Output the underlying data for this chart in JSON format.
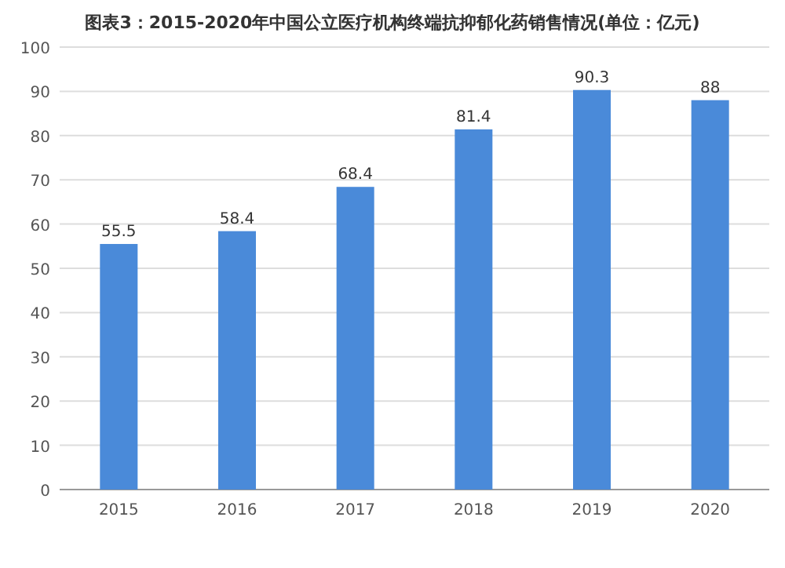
{
  "chart_data": {
    "type": "bar",
    "title": "图表3：2015-2020年中国公立医疗机构终端抗抑郁化药销售情况(单位：亿元)",
    "categories": [
      "2015",
      "2016",
      "2017",
      "2018",
      "2019",
      "2020"
    ],
    "values": [
      55.5,
      58.4,
      68.4,
      81.4,
      90.3,
      88
    ],
    "color": "#4a8ad9",
    "ylim": [
      0,
      100
    ],
    "yticks": [
      0,
      10,
      20,
      30,
      40,
      50,
      60,
      70,
      80,
      90,
      100
    ],
    "grid": "y",
    "data_labels": true
  }
}
